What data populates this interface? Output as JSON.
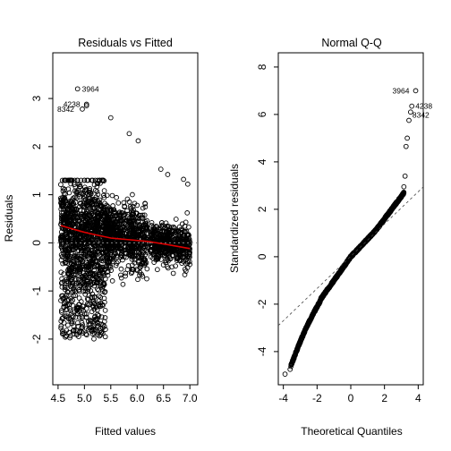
{
  "chart_data": [
    {
      "type": "scatter",
      "title": "Residuals vs Fitted",
      "xlabel": "Fitted values",
      "ylabel": "Residuals",
      "xlim": [
        4.4,
        7.15
      ],
      "ylim": [
        -2.95,
        3.95
      ],
      "xticks": [
        4.5,
        5.0,
        5.5,
        6.0,
        6.5,
        7.0
      ],
      "xtick_labels": [
        "4.5",
        "5.0",
        "5.5",
        "6.0",
        "6.5",
        "7.0"
      ],
      "yticks": [
        -2,
        -1,
        0,
        1,
        2,
        3
      ],
      "ytick_labels": [
        "-2",
        "-1",
        "0",
        "1",
        "2",
        "3"
      ],
      "grid": false,
      "reference_line": {
        "y": 0,
        "style": "dotted"
      },
      "smooth_line": {
        "color": "#dd0000",
        "x": [
          4.55,
          4.8,
          5.0,
          5.2,
          5.5,
          5.8,
          6.2,
          6.6,
          7.0
        ],
        "y": [
          0.36,
          0.28,
          0.22,
          0.17,
          0.1,
          0.07,
          0.03,
          -0.04,
          -0.12
        ]
      },
      "labeled_points": [
        {
          "label": "3964",
          "x": 4.87,
          "y": 3.2
        },
        {
          "label": "4238",
          "x": 5.04,
          "y": 2.88
        },
        {
          "label": "8342",
          "x": 4.96,
          "y": 2.78
        }
      ],
      "sparse_points": [
        {
          "x": 5.04,
          "y": 2.85
        },
        {
          "x": 5.5,
          "y": 2.6
        },
        {
          "x": 5.85,
          "y": 2.27
        },
        {
          "x": 6.02,
          "y": 2.12
        },
        {
          "x": 6.45,
          "y": 1.53
        },
        {
          "x": 6.58,
          "y": 1.42
        },
        {
          "x": 6.88,
          "y": 1.32
        },
        {
          "x": 6.96,
          "y": 1.22
        }
      ]
    },
    {
      "type": "scatter",
      "title": "Normal Q-Q",
      "xlabel": "Theoretical Quantiles",
      "ylabel": "Standardized residuals",
      "xlim": [
        -4.3,
        4.3
      ],
      "ylim": [
        -5.4,
        8.6
      ],
      "xticks": [
        -4,
        -2,
        0,
        2,
        4
      ],
      "xtick_labels": [
        "-4",
        "-2",
        "0",
        "2",
        "4"
      ],
      "yticks": [
        -4,
        -2,
        0,
        2,
        4,
        6,
        8
      ],
      "ytick_labels": [
        "-4",
        "-2",
        "0",
        "2",
        "4",
        "6",
        "8"
      ],
      "grid": false,
      "reference_line": {
        "slope": 0.68,
        "intercept": 0.02,
        "style": "dotted"
      },
      "labeled_points": [
        {
          "label": "3964",
          "x": 3.85,
          "y": 7.0
        },
        {
          "label": "4238",
          "x": 3.62,
          "y": 6.35
        },
        {
          "label": "8342",
          "x": 3.55,
          "y": 6.1
        }
      ],
      "tail_points": [
        {
          "x": 3.45,
          "y": 5.75
        },
        {
          "x": 3.35,
          "y": 5.0
        },
        {
          "x": 3.28,
          "y": 4.65
        },
        {
          "x": 3.22,
          "y": 3.4
        },
        {
          "x": 3.15,
          "y": 2.95
        },
        {
          "x": -3.6,
          "y": -4.75
        },
        {
          "x": -3.9,
          "y": -4.95
        }
      ]
    }
  ]
}
